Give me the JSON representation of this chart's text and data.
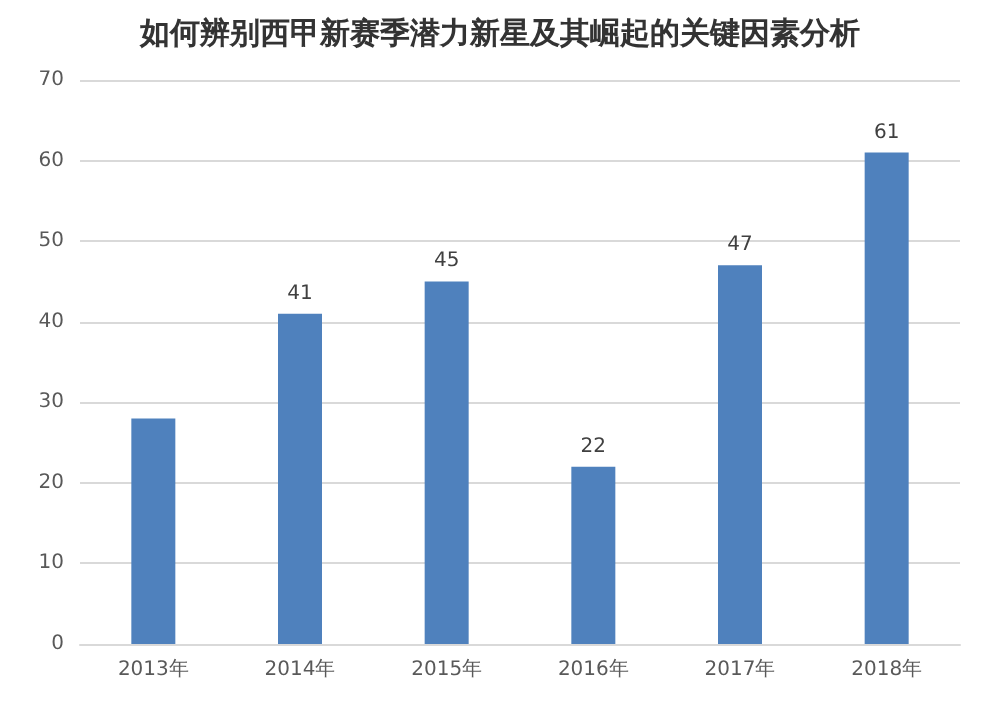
{
  "chart_data": {
    "type": "bar",
    "title": "如何辨别西甲新赛季潜力新星及其崛起的关键因素分析",
    "categories": [
      "2013年",
      "2014年",
      "2015年",
      "2016年",
      "2017年",
      "2018年"
    ],
    "values": [
      28,
      41,
      45,
      22,
      47,
      61
    ],
    "value_labels": [
      null,
      "41",
      "45",
      "22",
      "47",
      "61"
    ],
    "color": "#4f81bd",
    "ylim": [
      0,
      70
    ],
    "yticks": [
      0,
      10,
      20,
      30,
      40,
      50,
      60,
      70
    ],
    "grid": "y"
  }
}
